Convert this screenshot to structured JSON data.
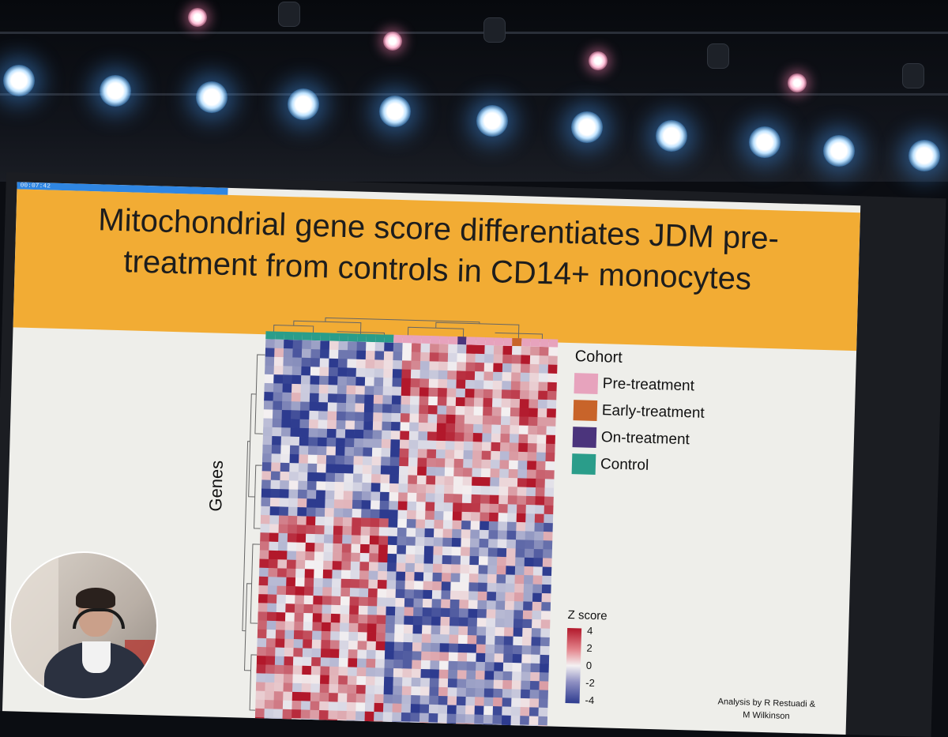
{
  "slide": {
    "timer": "00:07:42",
    "progress_fraction": 0.25,
    "title": "Mitochondrial gene score differentiates JDM pre-treatment from controls in CD14+ monocytes",
    "y_axis_label": "Genes",
    "legend": {
      "title": "Cohort",
      "items": [
        {
          "label": "Pre-treatment",
          "color": "#e7a3bd"
        },
        {
          "label": "Early-treatment",
          "color": "#c8642a"
        },
        {
          "label": "On-treatment",
          "color": "#4b347c"
        },
        {
          "label": "Control",
          "color": "#2a9d8a"
        }
      ]
    },
    "zscore": {
      "title": "Z score",
      "ticks": [
        "4",
        "2",
        "0",
        "-2",
        "-4"
      ],
      "colors": {
        "high": "#b2182b",
        "mid": "#f4f1f2",
        "low": "#2d3b8f"
      }
    },
    "credit_line1": "Analysis by R Restuadi &",
    "credit_line2": "M Wilkinson"
  },
  "webcam": {
    "icon": "presenter-webcam-icon"
  }
}
